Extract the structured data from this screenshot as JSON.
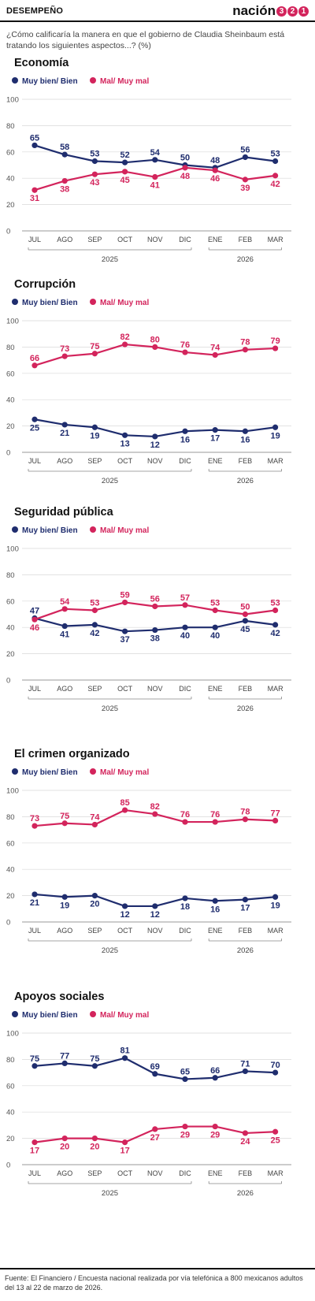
{
  "header": {
    "section": "DESEMPEÑO",
    "logo_text": "nación",
    "logo_digits": [
      "3",
      "2",
      "1"
    ]
  },
  "question": "¿Cómo calificaría la manera en que el gobierno de Claudia Sheinbaum está tratando los siguientes aspectos...? (%)",
  "colors": {
    "positive": "#1f2d6e",
    "negative": "#d3245c",
    "grid": "#d8d8d8",
    "axis": "#999999"
  },
  "source": "Fuente: El Financiero / Encuesta nacional realizada por vía telefónica a 800 mexicanos adultos del 13 al 22 de marzo de 2026.",
  "chart_data": [
    {
      "type": "line",
      "title": "Economía",
      "categories": [
        "JUL",
        "AGO",
        "SEP",
        "OCT",
        "NOV",
        "DIC",
        "ENE",
        "FEB",
        "MAR"
      ],
      "years": [
        {
          "label": "2025",
          "from": 0,
          "to": 5
        },
        {
          "label": "2026",
          "from": 6,
          "to": 8
        }
      ],
      "ylim": [
        0,
        100
      ],
      "yticks": [
        0,
        20,
        40,
        60,
        80,
        100
      ],
      "series": [
        {
          "name": "Muy bien/ Bien",
          "values": [
            65,
            58,
            53,
            52,
            54,
            50,
            48,
            56,
            53
          ]
        },
        {
          "name": "Mal/ Muy mal",
          "values": [
            31,
            38,
            43,
            45,
            41,
            48,
            46,
            39,
            42
          ]
        }
      ]
    },
    {
      "type": "line",
      "title": "Corrupción",
      "categories": [
        "JUL",
        "AGO",
        "SEP",
        "OCT",
        "NOV",
        "DIC",
        "ENE",
        "FEB",
        "MAR"
      ],
      "years": [
        {
          "label": "2025",
          "from": 0,
          "to": 5
        },
        {
          "label": "2026",
          "from": 6,
          "to": 8
        }
      ],
      "ylim": [
        0,
        100
      ],
      "yticks": [
        0,
        20,
        40,
        60,
        80,
        100
      ],
      "series": [
        {
          "name": "Muy bien/ Bien",
          "values": [
            25,
            21,
            19,
            13,
            12,
            16,
            17,
            16,
            19
          ]
        },
        {
          "name": "Mal/ Muy mal",
          "values": [
            66,
            73,
            75,
            82,
            80,
            76,
            74,
            78,
            79
          ]
        }
      ]
    },
    {
      "type": "line",
      "title": "Seguridad pública",
      "categories": [
        "JUL",
        "AGO",
        "SEP",
        "OCT",
        "NOV",
        "DIC",
        "ENE",
        "FEB",
        "MAR"
      ],
      "years": [
        {
          "label": "2025",
          "from": 0,
          "to": 5
        },
        {
          "label": "2026",
          "from": 6,
          "to": 8
        }
      ],
      "ylim": [
        0,
        100
      ],
      "yticks": [
        0,
        20,
        40,
        60,
        80,
        100
      ],
      "series": [
        {
          "name": "Muy bien/ Bien",
          "values": [
            47,
            41,
            42,
            37,
            38,
            40,
            40,
            45,
            42
          ]
        },
        {
          "name": "Mal/ Muy mal",
          "values": [
            46,
            54,
            53,
            59,
            56,
            57,
            53,
            50,
            53
          ]
        }
      ]
    },
    {
      "type": "line",
      "title": "El crimen organizado",
      "categories": [
        "JUL",
        "AGO",
        "SEP",
        "OCT",
        "NOV",
        "DIC",
        "ENE",
        "FEB",
        "MAR"
      ],
      "years": [
        {
          "label": "2025",
          "from": 0,
          "to": 5
        },
        {
          "label": "2026",
          "from": 6,
          "to": 8
        }
      ],
      "ylim": [
        0,
        100
      ],
      "yticks": [
        0,
        20,
        40,
        60,
        80,
        100
      ],
      "series": [
        {
          "name": "Muy bien/ Bien",
          "values": [
            21,
            19,
            20,
            12,
            12,
            18,
            16,
            17,
            19
          ]
        },
        {
          "name": "Mal/ Muy mal",
          "values": [
            73,
            75,
            74,
            85,
            82,
            76,
            76,
            78,
            77
          ]
        }
      ]
    },
    {
      "type": "line",
      "title": "Apoyos sociales",
      "categories": [
        "JUL",
        "AGO",
        "SEP",
        "OCT",
        "NOV",
        "DIC",
        "ENE",
        "FEB",
        "MAR"
      ],
      "years": [
        {
          "label": "2025",
          "from": 0,
          "to": 5
        },
        {
          "label": "2026",
          "from": 6,
          "to": 8
        }
      ],
      "ylim": [
        0,
        100
      ],
      "yticks": [
        0,
        20,
        40,
        60,
        80,
        100
      ],
      "series": [
        {
          "name": "Muy bien/ Bien",
          "values": [
            75,
            77,
            75,
            81,
            69,
            65,
            66,
            71,
            70
          ]
        },
        {
          "name": "Mal/ Muy mal",
          "values": [
            17,
            20,
            20,
            17,
            27,
            29,
            29,
            24,
            25
          ]
        }
      ]
    }
  ]
}
